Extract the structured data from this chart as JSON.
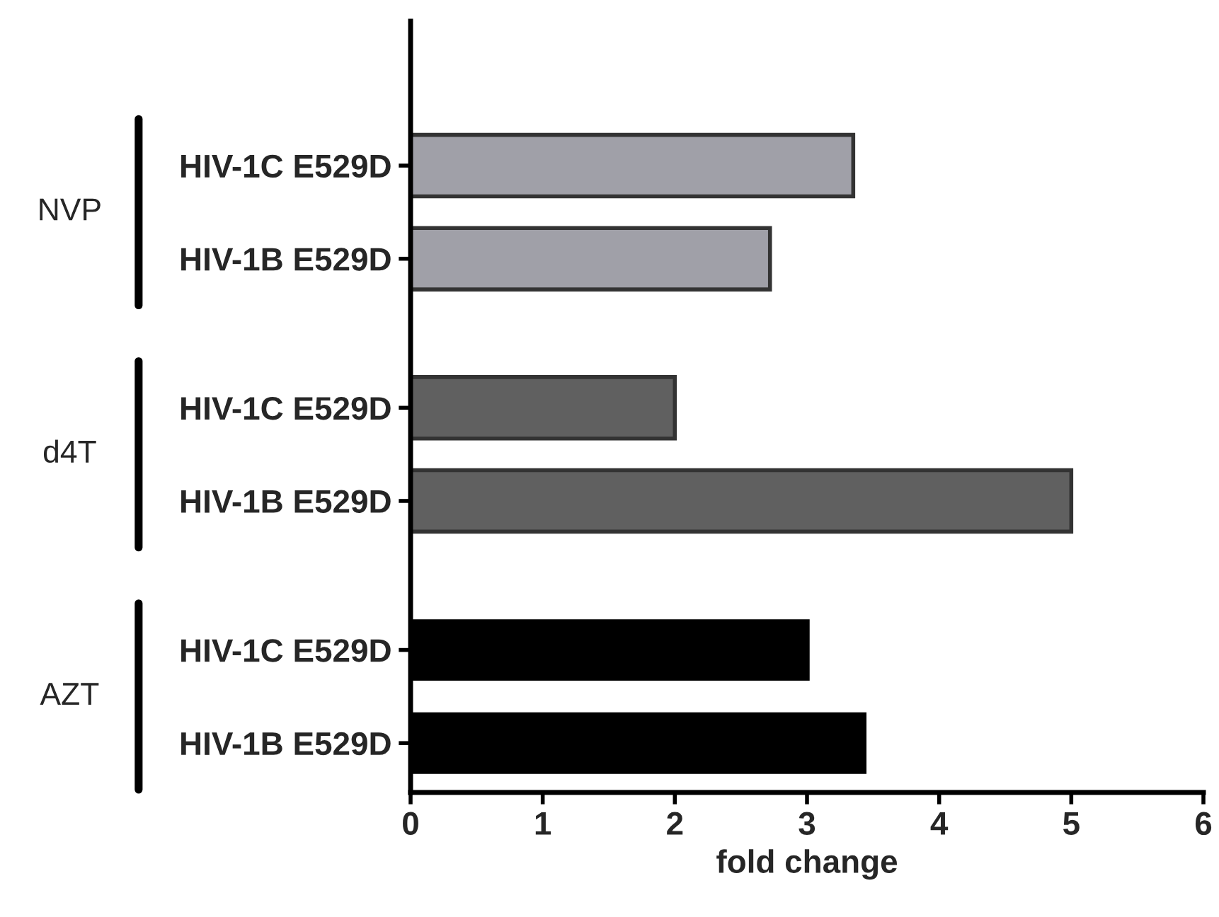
{
  "chart_data": {
    "type": "bar",
    "orientation": "horizontal",
    "xlabel": "fold change",
    "categories": [
      "HIV-1C E529D",
      "HIV-1B E529D",
      "HIV-1C E529D",
      "HIV-1B E529D",
      "HIV-1C E529D",
      "HIV-1B E529D"
    ],
    "values": [
      3.35,
      2.72,
      2.0,
      5.0,
      3.02,
      3.45
    ],
    "colors": [
      "#a0a0a8",
      "#a0a0a8",
      "#606060",
      "#606060",
      "#000000",
      "#000000"
    ],
    "xlim": [
      0,
      6
    ],
    "xticks": [
      0,
      1,
      2,
      3,
      4,
      5,
      6
    ],
    "annotations": [
      "NVP",
      "d4T",
      "AZT"
    ]
  }
}
